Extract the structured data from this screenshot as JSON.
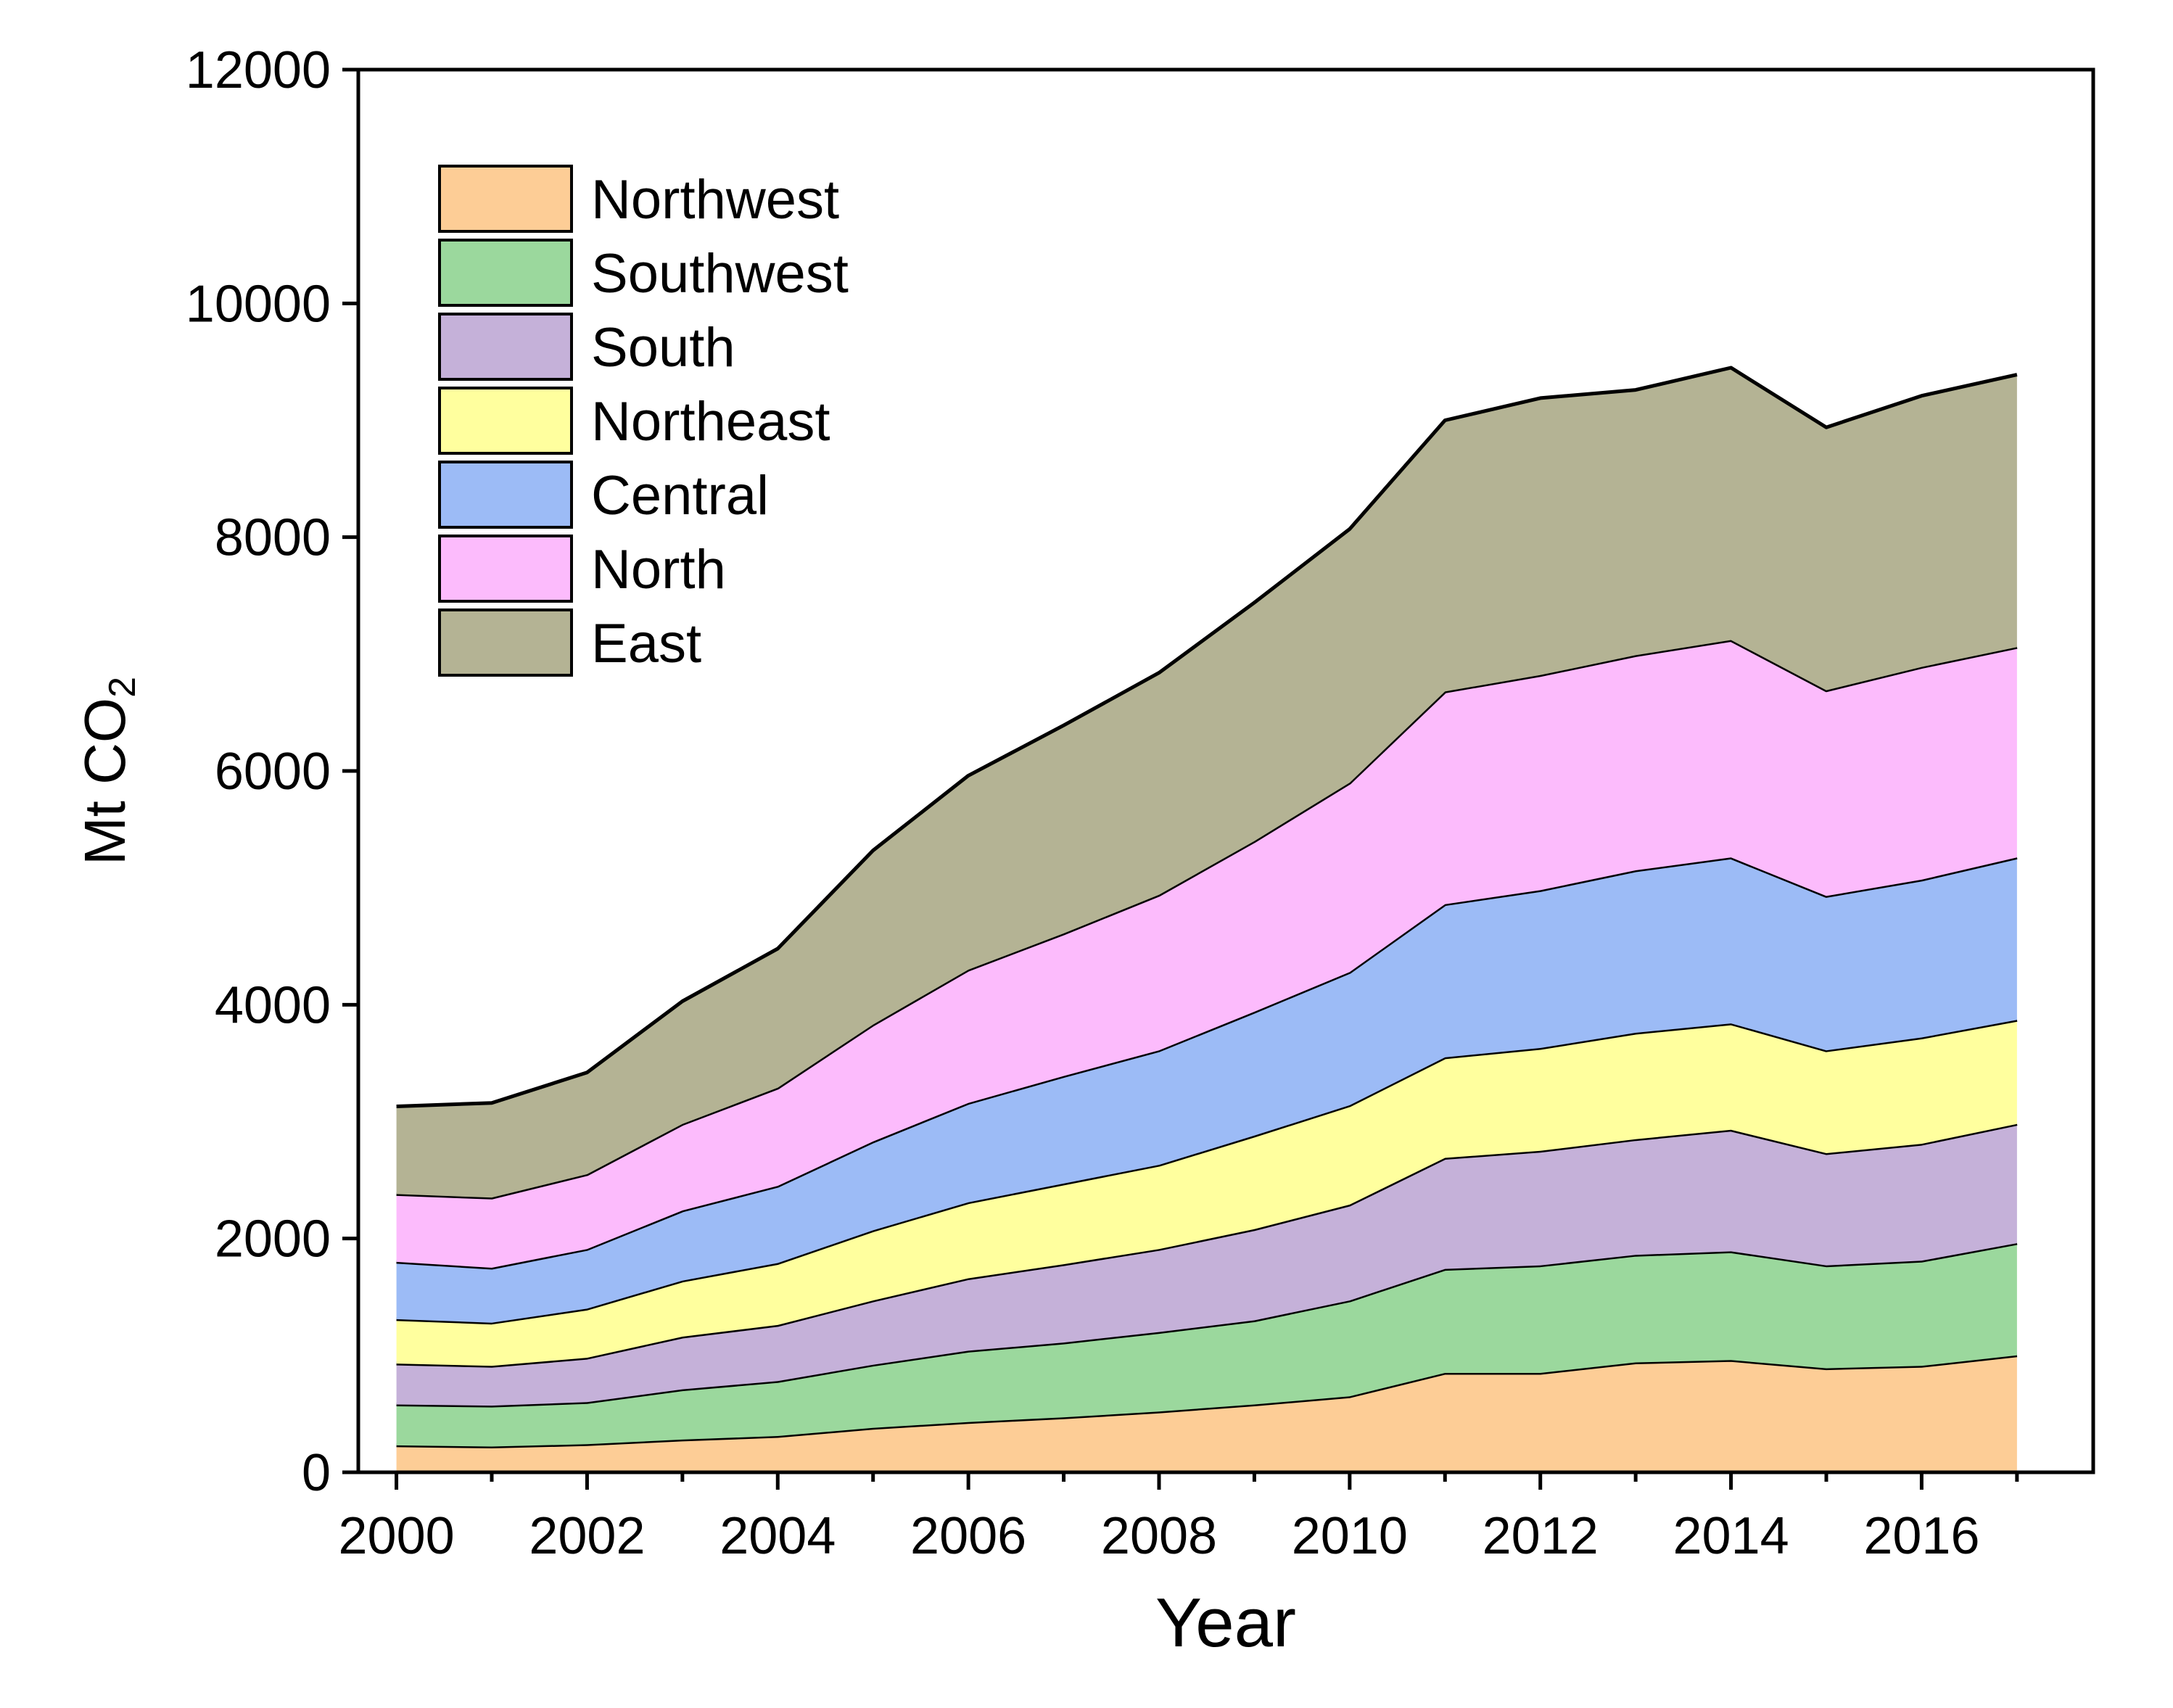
{
  "chart_data": {
    "type": "area",
    "stacked": true,
    "x": [
      2000,
      2001,
      2002,
      2003,
      2004,
      2005,
      2006,
      2007,
      2008,
      2009,
      2010,
      2011,
      2012,
      2013,
      2014,
      2015,
      2016,
      2017
    ],
    "series": [
      {
        "name": "Northwest",
        "color": "#fdcd96",
        "values": [
          230,
          220,
          240,
          280,
          310,
          380,
          430,
          470,
          520,
          580,
          650,
          850,
          850,
          940,
          960,
          890,
          910,
          1000
        ]
      },
      {
        "name": "Southwest",
        "color": "#9bd89d",
        "values": [
          350,
          350,
          360,
          430,
          470,
          540,
          610,
          640,
          680,
          720,
          820,
          890,
          920,
          920,
          930,
          880,
          900,
          960
        ]
      },
      {
        "name": "South",
        "color": "#c5b1d9",
        "values": [
          350,
          340,
          380,
          450,
          480,
          550,
          620,
          670,
          710,
          780,
          820,
          950,
          980,
          990,
          1040,
          960,
          1000,
          1020
        ]
      },
      {
        "name": "Northeast",
        "color": "#ffff9e",
        "values": [
          380,
          370,
          420,
          480,
          530,
          600,
          650,
          690,
          720,
          800,
          850,
          860,
          880,
          910,
          910,
          880,
          910,
          890
        ]
      },
      {
        "name": "Central",
        "color": "#9cbbf6",
        "values": [
          490,
          470,
          510,
          600,
          660,
          760,
          850,
          920,
          980,
          1060,
          1140,
          1310,
          1350,
          1390,
          1420,
          1320,
          1350,
          1390
        ]
      },
      {
        "name": "North",
        "color": "#fcbbfc",
        "values": [
          580,
          600,
          640,
          740,
          840,
          1000,
          1140,
          1220,
          1330,
          1460,
          1620,
          1820,
          1840,
          1840,
          1860,
          1760,
          1820,
          1800
        ]
      },
      {
        "name": "East",
        "color": "#b4b394",
        "values": [
          750,
          810,
          870,
          1050,
          1190,
          1490,
          1660,
          1780,
          1900,
          2040,
          2170,
          2320,
          2370,
          2270,
          2330,
          2250,
          2320,
          2330
        ]
      }
    ],
    "title": "",
    "xlabel": "Year",
    "ylabel_main": "Mt CO",
    "ylabel_sub": "2",
    "xlim": [
      1999.6,
      2017.8
    ],
    "ylim": [
      0,
      12000
    ],
    "yticks": [
      0,
      2000,
      4000,
      6000,
      8000,
      10000,
      12000
    ],
    "xticks": [
      2000,
      2002,
      2004,
      2006,
      2008,
      2010,
      2012,
      2014,
      2016
    ],
    "grid": false,
    "legend_position": "top-left"
  }
}
